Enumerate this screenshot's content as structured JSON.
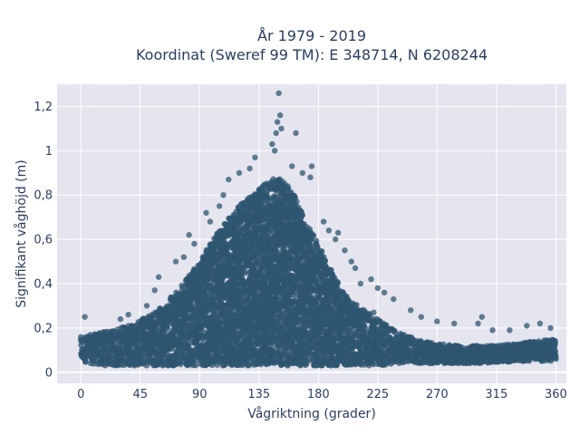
{
  "chart_data": {
    "type": "scatter",
    "title_line1": "År 1979 - 2019",
    "title_line2": "Koordinat (Sweref 99 TM): E 348714, N 6208244",
    "xlabel": "Vågriktning (grader)",
    "ylabel": "Signifikant våghöjd (m)",
    "xlim": [
      -18,
      368
    ],
    "ylim": [
      -0.05,
      1.3
    ],
    "x_ticks": [
      0,
      45,
      90,
      135,
      180,
      225,
      270,
      315,
      360
    ],
    "x_tick_labels": [
      "0",
      "45",
      "90",
      "135",
      "180",
      "225",
      "270",
      "315",
      "360"
    ],
    "y_ticks": [
      0,
      0.2,
      0.4,
      0.6,
      0.8,
      1.0,
      1.2
    ],
    "y_tick_labels": [
      "0",
      "0,2",
      "0,4",
      "0,6",
      "0,8",
      "1",
      "1,2"
    ],
    "grid": true,
    "marker_color": "#2f5670",
    "plot_background": "#e5e5f0",
    "envelope": {
      "x": [
        0,
        15,
        30,
        45,
        60,
        75,
        90,
        100,
        110,
        120,
        130,
        140,
        150,
        160,
        170,
        180,
        190,
        200,
        210,
        225,
        240,
        255,
        270,
        285,
        300,
        315,
        330,
        345,
        360
      ],
      "upper": [
        0.16,
        0.18,
        0.2,
        0.24,
        0.29,
        0.38,
        0.5,
        0.6,
        0.68,
        0.75,
        0.8,
        0.86,
        0.88,
        0.82,
        0.7,
        0.58,
        0.46,
        0.36,
        0.3,
        0.24,
        0.18,
        0.15,
        0.13,
        0.12,
        0.12,
        0.12,
        0.13,
        0.14,
        0.15
      ],
      "lower": [
        0.05,
        0.03,
        0.03,
        0.03,
        0.03,
        0.03,
        0.03,
        0.03,
        0.03,
        0.03,
        0.03,
        0.03,
        0.03,
        0.03,
        0.03,
        0.03,
        0.03,
        0.03,
        0.03,
        0.03,
        0.04,
        0.04,
        0.04,
        0.04,
        0.04,
        0.04,
        0.05,
        0.05,
        0.05
      ]
    },
    "outliers": [
      {
        "x": 150,
        "y": 1.26
      },
      {
        "x": 151,
        "y": 1.16
      },
      {
        "x": 149,
        "y": 1.13
      },
      {
        "x": 152,
        "y": 1.1
      },
      {
        "x": 148,
        "y": 1.08
      },
      {
        "x": 163,
        "y": 1.08
      },
      {
        "x": 145,
        "y": 1.03
      },
      {
        "x": 147,
        "y": 1.0
      },
      {
        "x": 132,
        "y": 0.97
      },
      {
        "x": 160,
        "y": 0.93
      },
      {
        "x": 175,
        "y": 0.93
      },
      {
        "x": 128,
        "y": 0.92
      },
      {
        "x": 168,
        "y": 0.9
      },
      {
        "x": 174,
        "y": 0.88
      },
      {
        "x": 112,
        "y": 0.87
      },
      {
        "x": 120,
        "y": 0.9
      },
      {
        "x": 108,
        "y": 0.8
      },
      {
        "x": 105,
        "y": 0.75
      },
      {
        "x": 95,
        "y": 0.72
      },
      {
        "x": 98,
        "y": 0.68
      },
      {
        "x": 82,
        "y": 0.62
      },
      {
        "x": 86,
        "y": 0.58
      },
      {
        "x": 78,
        "y": 0.52
      },
      {
        "x": 72,
        "y": 0.5
      },
      {
        "x": 59,
        "y": 0.43
      },
      {
        "x": 56,
        "y": 0.37
      },
      {
        "x": 50,
        "y": 0.3
      },
      {
        "x": 36,
        "y": 0.26
      },
      {
        "x": 30,
        "y": 0.24
      },
      {
        "x": 3,
        "y": 0.25
      },
      {
        "x": 184,
        "y": 0.68
      },
      {
        "x": 188,
        "y": 0.64
      },
      {
        "x": 193,
        "y": 0.6
      },
      {
        "x": 200,
        "y": 0.55
      },
      {
        "x": 205,
        "y": 0.5
      },
      {
        "x": 208,
        "y": 0.47
      },
      {
        "x": 220,
        "y": 0.42
      },
      {
        "x": 225,
        "y": 0.38
      },
      {
        "x": 230,
        "y": 0.36
      },
      {
        "x": 237,
        "y": 0.33
      },
      {
        "x": 250,
        "y": 0.28
      },
      {
        "x": 258,
        "y": 0.25
      },
      {
        "x": 270,
        "y": 0.23
      },
      {
        "x": 283,
        "y": 0.22
      },
      {
        "x": 301,
        "y": 0.22
      },
      {
        "x": 304,
        "y": 0.25
      },
      {
        "x": 312,
        "y": 0.19
      },
      {
        "x": 325,
        "y": 0.19
      },
      {
        "x": 338,
        "y": 0.21
      },
      {
        "x": 348,
        "y": 0.22
      },
      {
        "x": 356,
        "y": 0.2
      },
      {
        "x": 222,
        "y": 0.27
      },
      {
        "x": 195,
        "y": 0.63
      },
      {
        "x": 212,
        "y": 0.4
      }
    ]
  }
}
